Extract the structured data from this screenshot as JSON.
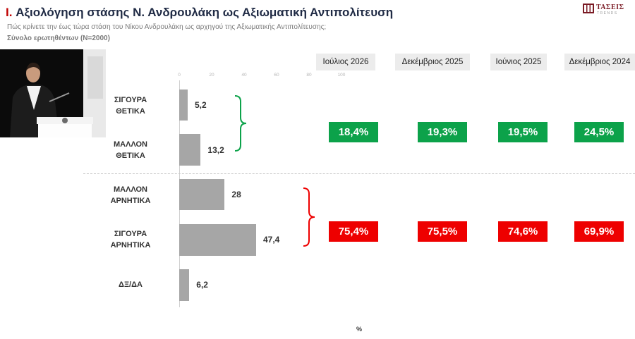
{
  "header": {
    "roman": "I.",
    "title": "Αξιολόγηση στάσης Ν. Ανδρουλάκη ως Αξιωματική Αντιπολίτευση",
    "subtitle": "Πώς κρίνετε την έως τώρα στάση του Νίκου Ανδρουλάκη ως αρχηγού της Αξιωματικής Αντιπολίτευσης;",
    "base": "Σύνολο ερωτηθέντων (Ν=2000)"
  },
  "logo": {
    "word": "ΤΑΣΕΙΣ",
    "sub": "TRENDS",
    "color": "#7a1a24"
  },
  "photo": {
    "description_icon": "speaker-photo"
  },
  "colors": {
    "bar": "#a6a6a6",
    "positive": "#0ca24a",
    "negative": "#ee0000",
    "title_accent": "#c00000"
  },
  "chart_data": {
    "type": "bar",
    "orientation": "horizontal",
    "categories": [
      "ΣΙΓΟΥΡΑ\nΘΕΤΙΚΑ",
      "ΜΑΛΛΟΝ\nΘΕΤΙΚΑ",
      "ΜΑΛΛΟΝ\nΑΡΝΗΤΙΚΑ",
      "ΣΙΓΟΥΡΑ\nΑΡΝΗΤΙΚΑ",
      "ΔΞ/ΔΑ"
    ],
    "values": [
      5.2,
      13.2,
      28,
      47.4,
      6.2
    ],
    "value_labels": [
      "5,2",
      "13,2",
      "28",
      "47,4",
      "6,2"
    ],
    "xlim": [
      0,
      100
    ],
    "xticks": [
      "0",
      "20",
      "40",
      "60",
      "80",
      "100"
    ],
    "unit_label": "%",
    "grid": false,
    "legend": "none",
    "comparison": {
      "periods": [
        "Ιούλιος 2026",
        "Δεκέμβριος 2025",
        "Ιούνιος 2025",
        "Δεκέμβριος 2024"
      ],
      "positive": [
        "18,4%",
        "19,3%",
        "19,5%",
        "24,5%"
      ],
      "negative": [
        "75,4%",
        "75,5%",
        "74,6%",
        "69,9%"
      ]
    }
  }
}
